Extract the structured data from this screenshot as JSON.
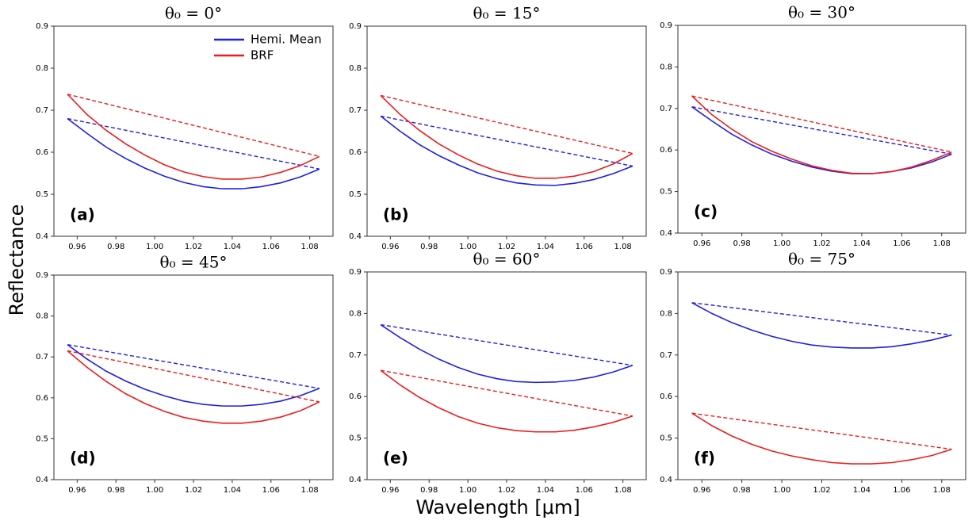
{
  "xlabel": "Wavelength [μm]",
  "ylabel": "Reflectance",
  "chart_data": [
    {
      "type": "line",
      "title": "θ₀ = 0°",
      "label": "(a)",
      "legend": "upper right",
      "x": [
        0.955,
        0.965,
        0.975,
        0.985,
        0.995,
        1.005,
        1.015,
        1.025,
        1.035,
        1.045,
        1.055,
        1.065,
        1.075,
        1.085
      ],
      "series": [
        {
          "name": "Hemi. Mean",
          "color": "#1f1fe6",
          "values": [
            0.68,
            0.645,
            0.612,
            0.585,
            0.562,
            0.543,
            0.528,
            0.518,
            0.513,
            0.513,
            0.518,
            0.527,
            0.541,
            0.56
          ]
        },
        {
          "name": "BRF",
          "color": "#ee1c1c",
          "values": [
            0.738,
            0.69,
            0.652,
            0.62,
            0.593,
            0.57,
            0.553,
            0.542,
            0.536,
            0.536,
            0.541,
            0.552,
            0.568,
            0.59
          ]
        }
      ],
      "xlim": [
        0.948,
        1.092
      ],
      "xticks": [
        0.96,
        0.98,
        {
          "value": 1,
          "label": "1.00"
        },
        1.02,
        1.04,
        1.06,
        1.08
      ],
      "ylim": [
        0.4,
        0.9
      ],
      "yticks": [
        0.4,
        0.5,
        0.6,
        0.7,
        0.8,
        0.9
      ]
    },
    {
      "type": "line",
      "title": "θ₀ = 15°",
      "label": "(b)",
      "x": [
        0.955,
        0.965,
        0.975,
        0.985,
        0.995,
        1.005,
        1.015,
        1.025,
        1.035,
        1.045,
        1.055,
        1.065,
        1.075,
        1.085
      ],
      "series": [
        {
          "color": "#1f1fe6",
          "values": [
            0.686,
            0.65,
            0.618,
            0.592,
            0.57,
            0.551,
            0.537,
            0.527,
            0.522,
            0.521,
            0.526,
            0.535,
            0.549,
            0.567
          ]
        },
        {
          "color": "#ee1c1c",
          "values": [
            0.735,
            0.69,
            0.652,
            0.62,
            0.594,
            0.572,
            0.555,
            0.544,
            0.538,
            0.538,
            0.543,
            0.554,
            0.572,
            0.597
          ]
        }
      ],
      "xlim": [
        0.948,
        1.092
      ],
      "xticks": [
        0.96,
        0.98,
        {
          "value": 1,
          "label": "1.00"
        },
        1.02,
        1.04,
        1.06,
        1.08
      ],
      "ylim": [
        0.4,
        0.9
      ],
      "yticks": [
        0.4,
        0.5,
        0.6,
        0.7,
        0.8,
        0.9
      ]
    },
    {
      "type": "line",
      "title": "θ₀ = 30°",
      "label": "(c)",
      "x": [
        0.955,
        0.965,
        0.975,
        0.985,
        0.995,
        1.005,
        1.015,
        1.025,
        1.035,
        1.045,
        1.055,
        1.065,
        1.075,
        1.085
      ],
      "series": [
        {
          "color": "#1f1fe6",
          "values": [
            0.704,
            0.67,
            0.638,
            0.612,
            0.59,
            0.573,
            0.559,
            0.549,
            0.543,
            0.543,
            0.548,
            0.557,
            0.571,
            0.59
          ]
        },
        {
          "color": "#ee1c1c",
          "values": [
            0.73,
            0.685,
            0.65,
            0.62,
            0.597,
            0.578,
            0.562,
            0.551,
            0.544,
            0.543,
            0.548,
            0.559,
            0.575,
            0.595
          ]
        }
      ],
      "xlim": [
        0.948,
        1.092
      ],
      "xticks": [
        0.96,
        0.98,
        {
          "value": 1,
          "label": "1.00"
        },
        1.02,
        1.04,
        1.06,
        1.08
      ],
      "ylim": [
        0.4,
        0.9
      ],
      "yticks": [
        0.4,
        0.5,
        0.6,
        0.7,
        0.8,
        0.9
      ]
    },
    {
      "type": "line",
      "title": "θ₀ = 45°",
      "label": "(d)",
      "x": [
        0.955,
        0.965,
        0.975,
        0.985,
        0.995,
        1.005,
        1.015,
        1.025,
        1.035,
        1.045,
        1.055,
        1.065,
        1.075,
        1.085
      ],
      "series": [
        {
          "color": "#1f1fe6",
          "values": [
            0.73,
            0.695,
            0.665,
            0.641,
            0.621,
            0.605,
            0.592,
            0.584,
            0.58,
            0.58,
            0.584,
            0.592,
            0.605,
            0.623
          ]
        },
        {
          "color": "#ee1c1c",
          "values": [
            0.715,
            0.675,
            0.64,
            0.61,
            0.586,
            0.567,
            0.552,
            0.543,
            0.538,
            0.538,
            0.543,
            0.553,
            0.568,
            0.59
          ]
        }
      ],
      "xlim": [
        0.948,
        1.092
      ],
      "xticks": [
        0.96,
        0.98,
        {
          "value": 1,
          "label": "1.00"
        },
        1.02,
        1.04,
        1.06,
        1.08
      ],
      "ylim": [
        0.4,
        0.9
      ],
      "yticks": [
        0.4,
        0.5,
        0.6,
        0.7,
        0.8,
        0.9
      ]
    },
    {
      "type": "line",
      "title": "θ₀ = 60°",
      "label": "(e)",
      "x": [
        0.955,
        0.965,
        0.975,
        0.985,
        0.995,
        1.005,
        1.015,
        1.025,
        1.035,
        1.045,
        1.055,
        1.065,
        1.075,
        1.085
      ],
      "series": [
        {
          "color": "#1f1fe6",
          "values": [
            0.773,
            0.742,
            0.714,
            0.69,
            0.67,
            0.654,
            0.643,
            0.636,
            0.634,
            0.635,
            0.639,
            0.647,
            0.659,
            0.675
          ]
        },
        {
          "color": "#ee1c1c",
          "values": [
            0.663,
            0.628,
            0.598,
            0.573,
            0.552,
            0.536,
            0.525,
            0.518,
            0.515,
            0.515,
            0.519,
            0.527,
            0.538,
            0.553
          ]
        }
      ],
      "xlim": [
        0.948,
        1.092
      ],
      "xticks": [
        0.96,
        0.98,
        {
          "value": 1,
          "label": "1.00"
        },
        1.02,
        1.04,
        1.06,
        1.08
      ],
      "ylim": [
        0.4,
        0.9
      ],
      "yticks": [
        0.4,
        0.5,
        0.6,
        0.7,
        0.8,
        0.9
      ]
    },
    {
      "type": "line",
      "title": "θ₀ = 75°",
      "label": "(f)",
      "x": [
        0.955,
        0.965,
        0.975,
        0.985,
        0.995,
        1.005,
        1.015,
        1.025,
        1.035,
        1.045,
        1.055,
        1.065,
        1.075,
        1.085
      ],
      "series": [
        {
          "color": "#1f1fe6",
          "values": [
            0.826,
            0.8,
            0.778,
            0.76,
            0.745,
            0.733,
            0.724,
            0.719,
            0.717,
            0.717,
            0.72,
            0.727,
            0.736,
            0.748
          ]
        },
        {
          "color": "#ee1c1c",
          "values": [
            0.56,
            0.53,
            0.505,
            0.485,
            0.469,
            0.457,
            0.448,
            0.441,
            0.438,
            0.438,
            0.441,
            0.448,
            0.458,
            0.473
          ]
        }
      ],
      "xlim": [
        0.948,
        1.092
      ],
      "xticks": [
        0.96,
        0.98,
        {
          "value": 1,
          "label": "1.00"
        },
        1.02,
        1.04,
        1.06,
        1.08
      ],
      "ylim": [
        0.4,
        0.9
      ],
      "yticks": [
        0.4,
        0.5,
        0.6,
        0.7,
        0.8,
        0.9
      ]
    }
  ]
}
